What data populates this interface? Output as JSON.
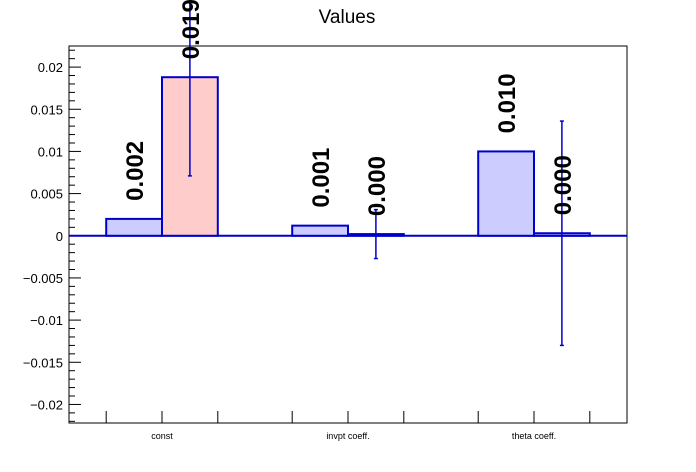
{
  "chart_data": {
    "type": "bar",
    "title": "Values",
    "xlabel": "",
    "ylabel": "",
    "categories": [
      "const",
      "invpt coeff.",
      "theta coeff."
    ],
    "ylim": [
      -0.0222,
      0.0225
    ],
    "yticks": [
      0.02,
      0.015,
      0.01,
      0.005,
      0,
      -0.005,
      -0.01,
      -0.015,
      -0.02
    ],
    "ytick_labels": [
      "0.02",
      "0.015",
      "0.01",
      "0.005",
      "0",
      "−0.005",
      "−0.01",
      "−0.015",
      "−0.02"
    ],
    "grid": false,
    "series": [
      {
        "values": [
          0.002,
          0.0012,
          0.01
        ],
        "labels": [
          "0.002",
          "0.001",
          "0.010"
        ],
        "fill": "#ccccff",
        "stroke": "#0000cc"
      },
      {
        "values": [
          0.0188,
          0.0002,
          0.0003
        ],
        "errors": [
          0.0117,
          0.0029,
          0.0133
        ],
        "labels": [
          "0.019",
          "0.000",
          "0.000"
        ],
        "fills": [
          "#ffcccc",
          "#ccccff",
          "#ccccff"
        ],
        "stroke": "#0000cc"
      }
    ]
  }
}
